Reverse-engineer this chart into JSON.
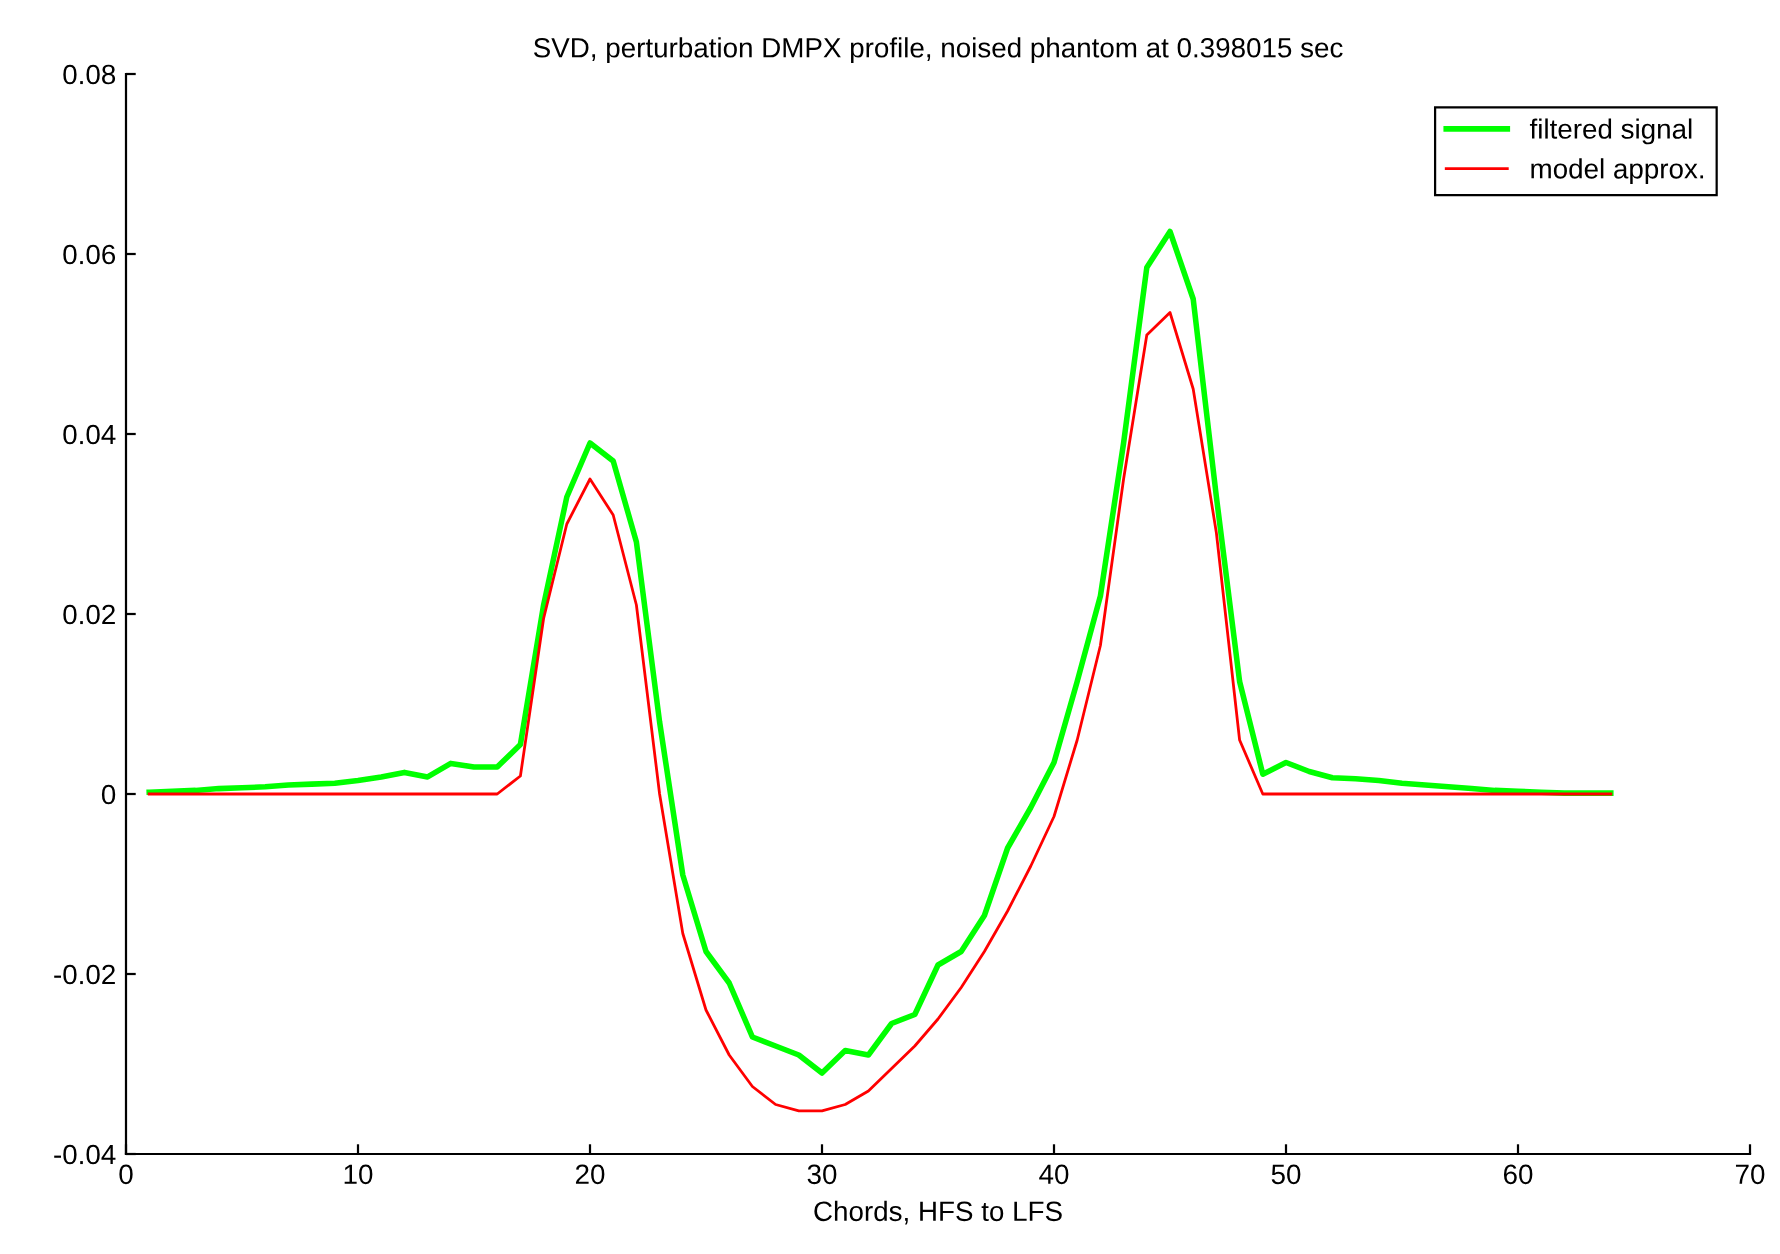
{
  "chart_data": {
    "type": "line",
    "title": "SVD, perturbation DMPX profile, noised phantom at 0.398015 sec",
    "xlabel": "Chords, HFS to LFS",
    "x": [
      1,
      2,
      3,
      4,
      5,
      6,
      7,
      8,
      9,
      10,
      11,
      12,
      13,
      14,
      15,
      16,
      17,
      18,
      19,
      20,
      21,
      22,
      23,
      24,
      25,
      26,
      27,
      28,
      29,
      30,
      31,
      32,
      33,
      34,
      35,
      36,
      37,
      38,
      39,
      40,
      41,
      42,
      43,
      44,
      45,
      46,
      47,
      48,
      49,
      50,
      51,
      52,
      53,
      54,
      55,
      56,
      57,
      58,
      59,
      60,
      61,
      62,
      63,
      64
    ],
    "series": [
      {
        "name": "filtered signal",
        "color": "#00ff00",
        "values": [
          0.0002,
          0.0003,
          0.0004,
          0.0006,
          0.0007,
          0.0008,
          0.001,
          0.0011,
          0.0012,
          0.0015,
          0.0019,
          0.0024,
          0.0019,
          0.0034,
          0.003,
          0.003,
          0.0055,
          0.021,
          0.033,
          0.039,
          0.037,
          0.028,
          0.008,
          -0.009,
          -0.0175,
          -0.021,
          -0.027,
          -0.028,
          -0.029,
          -0.031,
          -0.0285,
          -0.029,
          -0.0255,
          -0.0245,
          -0.019,
          -0.0175,
          -0.0135,
          -0.006,
          -0.0015,
          0.0035,
          0.0125,
          0.022,
          0.039,
          0.0585,
          0.0625,
          0.055,
          0.033,
          0.0125,
          0.0022,
          0.0035,
          0.0025,
          0.0018,
          0.0017,
          0.0015,
          0.0012,
          0.001,
          0.0008,
          0.0006,
          0.0004,
          0.0003,
          0.0002,
          0.0001,
          0.0001,
          0.0001
        ]
      },
      {
        "name": "model approx.",
        "color": "#ff0000",
        "values": [
          0,
          0,
          0,
          0,
          0,
          0,
          0,
          0,
          0,
          0,
          0,
          0,
          0,
          0,
          0,
          0,
          0.002,
          0.0195,
          0.03,
          0.035,
          0.031,
          0.021,
          0.0,
          -0.0155,
          -0.024,
          -0.029,
          -0.0325,
          -0.0345,
          -0.0352,
          -0.0352,
          -0.0345,
          -0.033,
          -0.0305,
          -0.028,
          -0.025,
          -0.0215,
          -0.0175,
          -0.013,
          -0.008,
          -0.0025,
          0.006,
          0.0165,
          0.035,
          0.051,
          0.0535,
          0.045,
          0.029,
          0.006,
          0,
          0,
          0,
          0,
          0,
          0,
          0,
          0,
          0,
          0,
          0,
          0,
          0,
          0,
          0,
          0
        ]
      }
    ],
    "xlim": [
      0,
      70
    ],
    "ylim": [
      -0.04,
      0.08
    ],
    "xticks": [
      0,
      10,
      20,
      30,
      40,
      50,
      60,
      70
    ],
    "yticks": [
      {
        "value": -0.04,
        "label": "-0.04"
      },
      {
        "value": -0.02,
        "label": "-0.02"
      },
      0,
      0.02,
      0.04,
      0.06,
      0.08
    ],
    "legend": "top right",
    "grid": false
  }
}
